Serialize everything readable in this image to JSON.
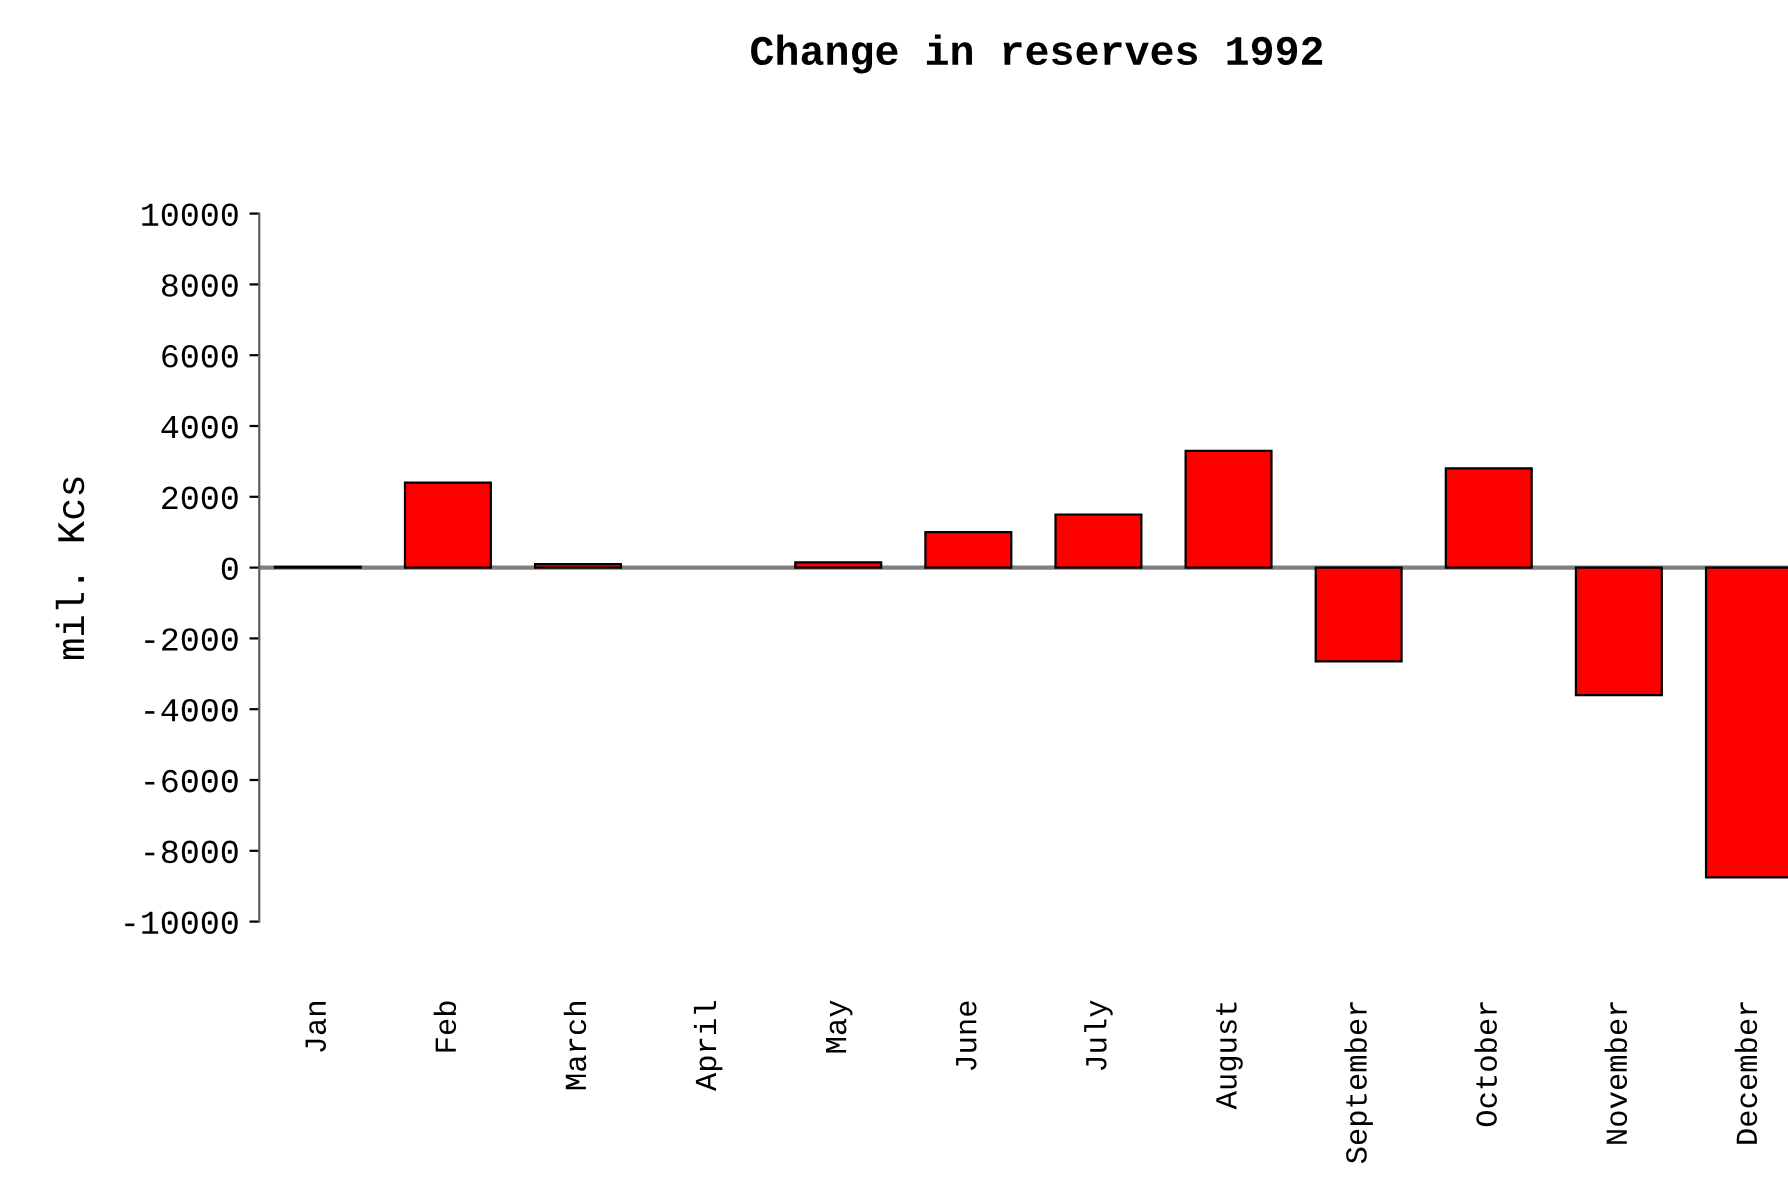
{
  "chart_data": {
    "type": "bar",
    "title": "Change in reserves 1992",
    "ylabel": "mil. Kcs",
    "categories": [
      "Jan",
      "Feb",
      "March",
      "April",
      "May",
      "June",
      "July",
      "August",
      "September",
      "October",
      "November",
      "December"
    ],
    "values": [
      20,
      2400,
      100,
      null,
      150,
      1000,
      1500,
      3300,
      -2650,
      2800,
      -3600,
      -8750
    ],
    "color": "#ff0000",
    "ylim": [
      -10000,
      10000
    ],
    "yticks": [
      -10000,
      -8000,
      -6000,
      -4000,
      -2000,
      0,
      2000,
      4000,
      6000,
      8000,
      10000
    ],
    "ref_lines": [
      {
        "axis": "y",
        "value": 0,
        "color": "#808080"
      }
    ],
    "grid": false,
    "legend": false
  }
}
